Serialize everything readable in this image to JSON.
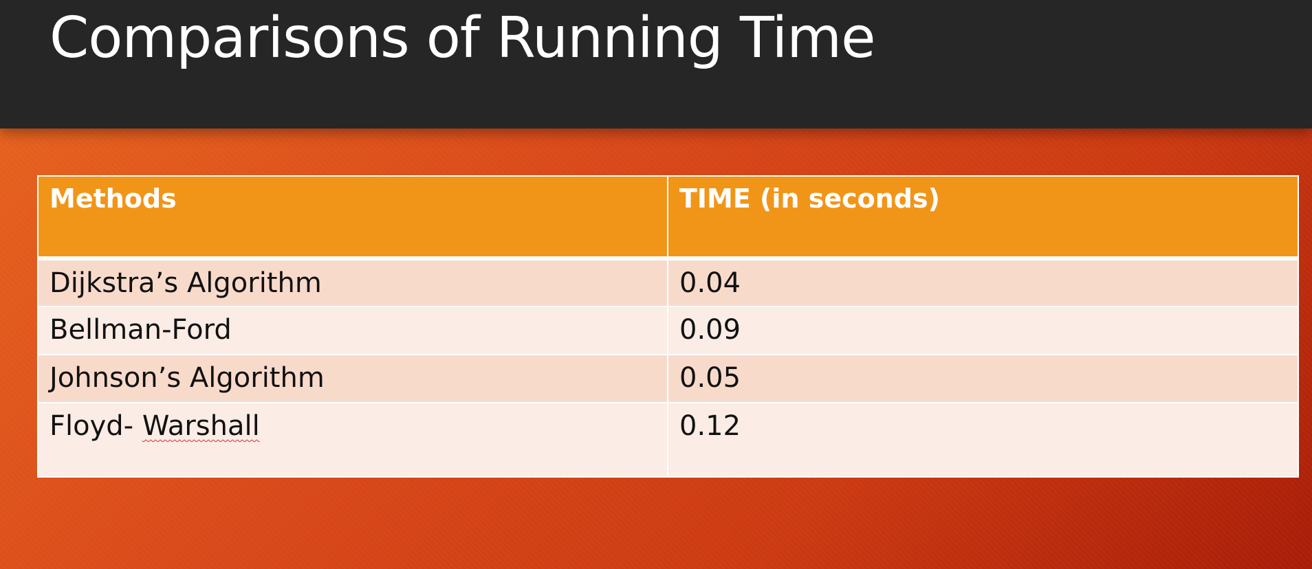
{
  "slide": {
    "title": "Comparisons of Running Time"
  },
  "table": {
    "headers": [
      "Methods",
      "TIME (in seconds)"
    ],
    "rows": [
      {
        "method_a": "Dijkstra’s Algorithm",
        "method_b": "",
        "time": "0.04"
      },
      {
        "method_a": "Bellman-Ford",
        "method_b": "",
        "time": "0.09"
      },
      {
        "method_a": "Johnson’s Algorithm",
        "method_b": "",
        "time": "0.05"
      },
      {
        "method_a": "Floyd- ",
        "method_b": "Warshall",
        "time": "0.12"
      }
    ]
  },
  "colors": {
    "title_bar": "#262626",
    "header_fill": "#f19519",
    "row_odd": "#f8dacb",
    "row_even": "#fbece5",
    "background_start": "#e8661f",
    "background_end": "#a81d08"
  }
}
